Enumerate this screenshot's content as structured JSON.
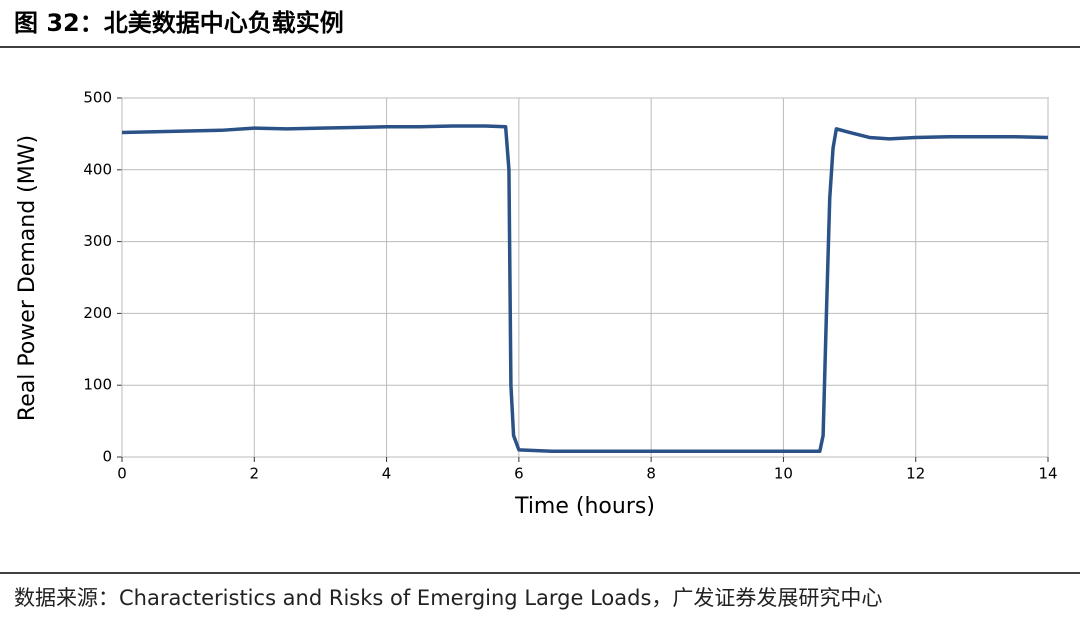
{
  "chart_data": {
    "type": "line",
    "title": "图 32：北美数据中心负载实例",
    "source": "数据来源：Characteristics and Risks of Emerging Large Loads，广发证券发展研究中心",
    "x_label": "Time (hours)",
    "y_label": "Real Power Demand (MW)",
    "x": [
      0,
      0.5,
      1,
      1.5,
      2,
      2.5,
      3,
      3.5,
      4,
      4.5,
      5,
      5.5,
      5.8,
      5.85,
      5.88,
      5.92,
      6,
      6.5,
      7,
      8,
      9,
      10,
      10.55,
      10.6,
      10.65,
      10.7,
      10.75,
      10.8,
      11,
      11.3,
      11.6,
      12,
      12.5,
      13,
      13.5,
      14
    ],
    "series": [
      {
        "name": "Real Power Demand",
        "color": "#2b5287",
        "values": [
          452,
          453,
          454,
          455,
          458,
          457,
          458,
          459,
          460,
          460,
          461,
          461,
          460,
          400,
          100,
          30,
          10,
          8,
          8,
          8,
          8,
          8,
          8,
          30,
          200,
          360,
          430,
          457,
          452,
          445,
          443,
          445,
          446,
          446,
          446,
          445
        ]
      }
    ],
    "xlim": [
      0,
      14
    ],
    "xticks": [
      0,
      2,
      4,
      6,
      8,
      10,
      12,
      14
    ],
    "ylim": [
      0,
      500
    ],
    "yticks": [
      0,
      100,
      200,
      300,
      400,
      500
    ],
    "grid": true
  }
}
